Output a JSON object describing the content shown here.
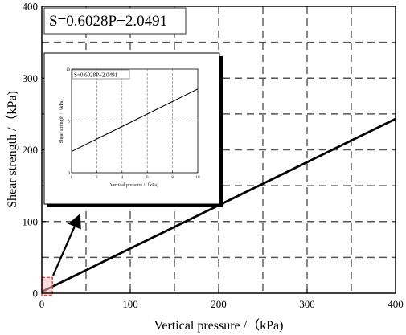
{
  "chart_data": [
    {
      "type": "line",
      "title": "",
      "xlabel": "Vertical pressure /（kPa)",
      "ylabel": "Shear strength /（kPa)",
      "xlim": [
        0,
        400
      ],
      "ylim": [
        0,
        400
      ],
      "x_ticks": [
        0,
        100,
        200,
        300,
        400
      ],
      "y_ticks": [
        0,
        100,
        200,
        300,
        400
      ],
      "grid": "dashed",
      "annotation": "S=0.6028P+2.0491",
      "series": [
        {
          "x": [
            0,
            400
          ],
          "y": [
            2.0491,
            243.1691
          ]
        }
      ],
      "highlight_region": {
        "x": [
          0,
          12
        ],
        "y": [
          -3,
          22
        ]
      },
      "legend": "none"
    },
    {
      "type": "line",
      "title": "",
      "xlabel": "Vertical pressure /（kPa)",
      "ylabel": "Shear strength /（kPa)",
      "xlim": [
        0,
        10
      ],
      "ylim": [
        0,
        10
      ],
      "x_ticks": [
        0,
        2,
        4,
        6,
        8,
        10
      ],
      "y_ticks": [
        0,
        5,
        10
      ],
      "grid": "dashed",
      "annotation": "S=0.6028P+2.0491",
      "series": [
        {
          "x": [
            0,
            10
          ],
          "y": [
            2.0491,
            8.0771
          ]
        }
      ],
      "legend": "none"
    }
  ]
}
